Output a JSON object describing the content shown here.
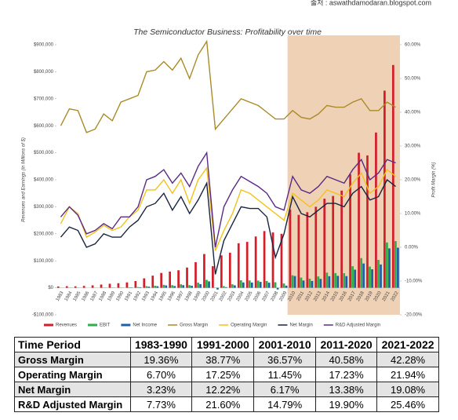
{
  "source": "출처 : aswathdamodaran.blogspot.com",
  "chart_data": {
    "type": "combo",
    "title": "The Semiconductor Business: Profitability over time",
    "y_label": "Revenues and Earnings (in Millions of $)",
    "y2_label": "Profit Margin (%)",
    "categories": [
      "1983",
      "1984",
      "1985",
      "1986",
      "1987",
      "1988",
      "1989",
      "1990",
      "1991",
      "1992",
      "1993",
      "1994",
      "1995",
      "1996",
      "1997",
      "1998",
      "1999",
      "2000",
      "2001",
      "2002",
      "2003",
      "2004",
      "2005",
      "2006",
      "2007",
      "2008",
      "2009",
      "2010",
      "2011",
      "2012",
      "2013",
      "2014",
      "2015",
      "2016",
      "2017",
      "2018",
      "2019",
      "2020",
      "2021",
      "2022"
    ],
    "ylim": [
      -100000,
      900000
    ],
    "yticks": [
      {
        "value": -100000,
        "label": "-$100,000"
      },
      {
        "value": 0,
        "label": "$0"
      },
      {
        "value": 100000,
        "label": "$100,000"
      },
      {
        "value": 200000,
        "label": "$200,000"
      },
      {
        "value": 300000,
        "label": "$300,000"
      },
      {
        "value": 400000,
        "label": "$400,000"
      },
      {
        "value": 500000,
        "label": "$500,000"
      },
      {
        "value": 600000,
        "label": "$600,000"
      },
      {
        "value": 700000,
        "label": "$700,000"
      },
      {
        "value": 800000,
        "label": "$800,000"
      },
      {
        "value": 900000,
        "label": "$900,000"
      }
    ],
    "y2lim": [
      -20,
      60
    ],
    "y2ticks": [
      {
        "value": -20,
        "label": "-20.00%"
      },
      {
        "value": -10,
        "label": "-10.00%"
      },
      {
        "value": 0,
        "label": "0.00%"
      },
      {
        "value": 10,
        "label": "10.00%"
      },
      {
        "value": 20,
        "label": "20.00%"
      },
      {
        "value": 30,
        "label": "30.00%"
      },
      {
        "value": 40,
        "label": "40.00%"
      },
      {
        "value": 50,
        "label": "50.00%"
      },
      {
        "value": 60,
        "label": "60.00%"
      }
    ],
    "series": [
      {
        "name": "Revenues",
        "type": "bar",
        "color": "#d21f2a",
        "values": [
          5000,
          6000,
          5500,
          7000,
          9000,
          12000,
          15000,
          17000,
          20000,
          25000,
          35000,
          45000,
          55000,
          60000,
          65000,
          75000,
          95000,
          125000,
          80000,
          120000,
          130000,
          165000,
          170000,
          190000,
          210000,
          205000,
          200000,
          290000,
          270000,
          280000,
          300000,
          330000,
          340000,
          360000,
          420000,
          500000,
          490000,
          575000,
          730000,
          825000
        ]
      },
      {
        "name": "EBIT",
        "type": "bar",
        "color": "#2fae4a",
        "values": [
          350,
          720,
          550,
          210,
          400,
          780,
          750,
          1000,
          1800,
          2750,
          5950,
          7650,
          11000,
          9600,
          13000,
          9750,
          19000,
          29400,
          -800,
          6000,
          13000,
          28000,
          27200,
          26600,
          25200,
          20500,
          16000,
          46400,
          37800,
          33600,
          42000,
          56100,
          54400,
          54000,
          79800,
          110000,
          78400,
          103500,
          167900,
          173000
        ]
      },
      {
        "name": "Net Income",
        "type": "bar",
        "color": "#1f5fa8",
        "values": [
          150,
          360,
          280,
          0,
          90,
          480,
          450,
          510,
          1200,
          2000,
          4200,
          5850,
          8800,
          6600,
          9750,
          7500,
          13300,
          23750,
          -6400,
          2400,
          9100,
          19800,
          19550,
          21850,
          18900,
          -6150,
          8000,
          43500,
          27000,
          25200,
          33000,
          42900,
          44200,
          43200,
          67200,
          90000,
          68600,
          86250,
          146000,
          148500
        ]
      },
      {
        "name": "Gross Margin",
        "type": "line",
        "axis": "y2",
        "color": "#a98b2a",
        "values": [
          36,
          41,
          40.5,
          34,
          35,
          39.5,
          37.5,
          43,
          44,
          45,
          52,
          52.5,
          55,
          52.5,
          56,
          50,
          57,
          61,
          35,
          38,
          41,
          44,
          43,
          42,
          40,
          38,
          38,
          40.5,
          38.5,
          38,
          39.5,
          42,
          41.5,
          41.5,
          43,
          44,
          40.5,
          40.5,
          43,
          41.5
        ]
      },
      {
        "name": "Operating Margin",
        "type": "line",
        "axis": "y2",
        "color": "#f2c21b",
        "values": [
          7,
          12,
          10,
          3,
          4.5,
          6.5,
          5,
          6,
          9,
          11,
          17,
          17,
          20,
          16,
          20,
          13,
          20,
          23.5,
          -1,
          5,
          10,
          17,
          16,
          14,
          12,
          10,
          8,
          16,
          14,
          12,
          14,
          17,
          16,
          15,
          19,
          22,
          16,
          18,
          23,
          21
        ]
      },
      {
        "name": "Net Margin",
        "type": "line",
        "axis": "y2",
        "color": "#1a2340",
        "values": [
          3,
          6,
          5,
          0,
          1,
          4,
          3,
          3,
          6,
          8,
          12,
          13,
          16,
          11,
          15,
          10,
          14,
          19,
          -8,
          2,
          7,
          12,
          11.5,
          11.5,
          9,
          -3,
          4,
          15,
          10,
          9,
          11,
          13,
          13,
          12,
          16,
          18,
          14,
          15,
          20,
          18
        ]
      },
      {
        "name": "R&D Adjusted Margin",
        "type": "line",
        "axis": "y2",
        "color": "#5b2a86",
        "values": [
          9,
          12,
          9.5,
          4,
          5,
          7,
          5.5,
          9,
          9,
          12,
          20,
          21,
          23,
          19,
          22,
          18,
          24,
          28,
          0,
          12,
          17,
          21,
          19.5,
          18,
          16,
          12,
          11,
          21,
          17,
          16,
          18,
          21,
          20,
          19,
          23,
          26,
          20,
          22,
          26,
          25
        ]
      }
    ]
  },
  "table": {
    "header": [
      "Time Period",
      "1983-1990",
      "1991-2000",
      "2001-2010",
      "2011-2020",
      "2021-2022"
    ],
    "rows": [
      [
        "Gross Margin",
        "19.36%",
        "38.77%",
        "36.57%",
        "40.58%",
        "42.28%"
      ],
      [
        "Operating Margin",
        "6.70%",
        "17.25%",
        "11.45%",
        "17.23%",
        "21.94%"
      ],
      [
        "Net Margin",
        "3.23%",
        "12.22%",
        "6.17%",
        "13.38%",
        "19.08%"
      ],
      [
        "R&D Adjusted Margin",
        "7.73%",
        "21.60%",
        "14.79%",
        "19.90%",
        "25.46%"
      ]
    ]
  }
}
